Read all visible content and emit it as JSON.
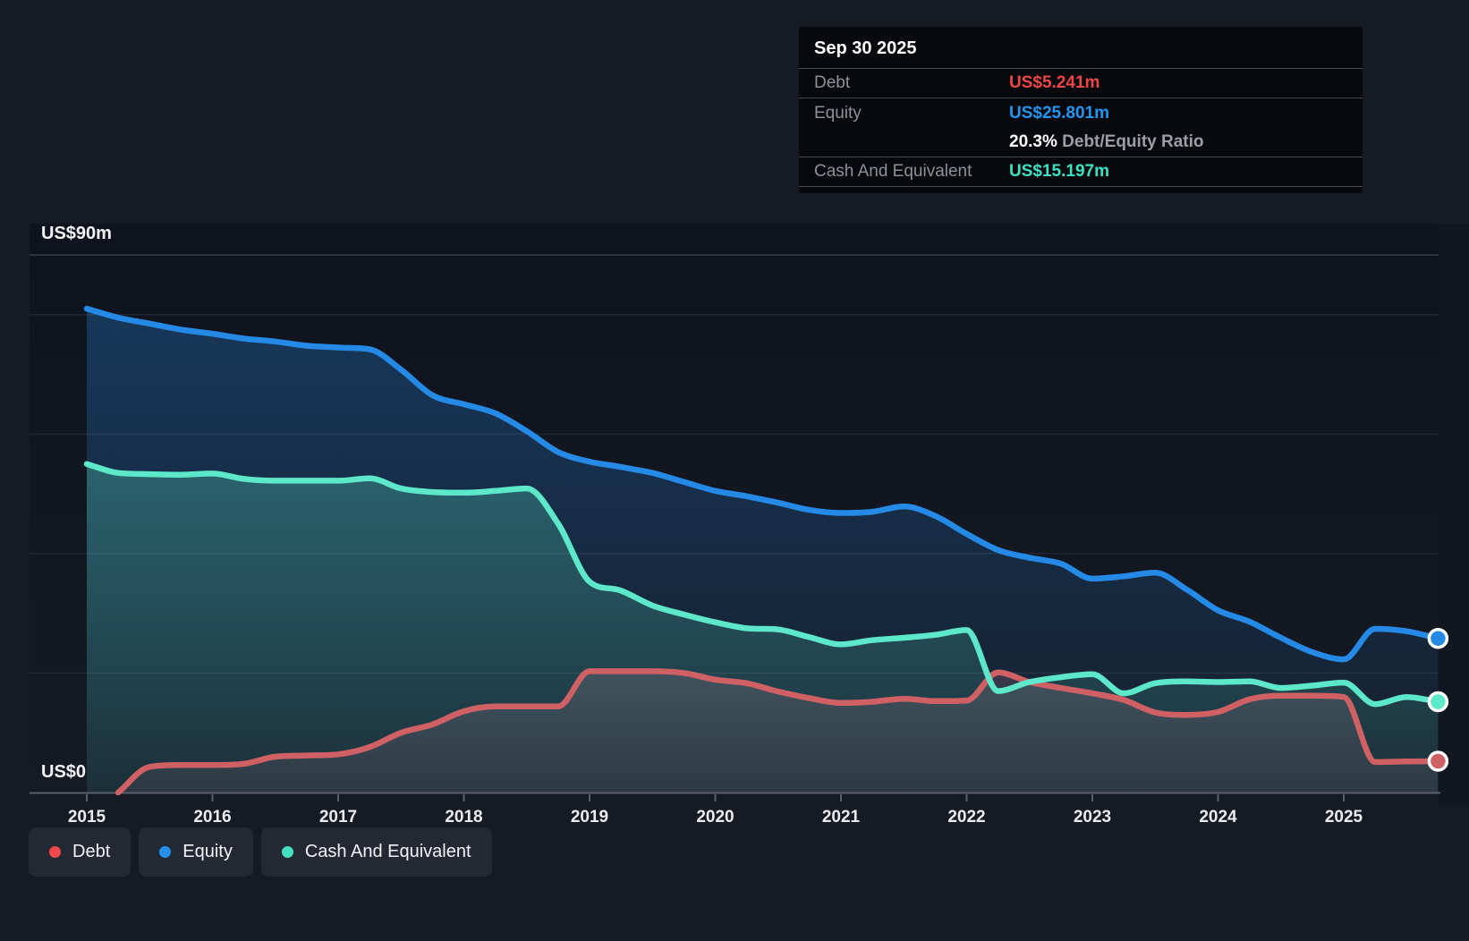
{
  "tooltip": {
    "date": "Sep 30 2025",
    "rows": [
      {
        "label": "Debt",
        "value": "US$5.241m",
        "color": "#ef4545"
      },
      {
        "label": "Equity",
        "value": "US$25.801m",
        "color": "#2196f3"
      },
      {
        "label": "Cash And Equivalent",
        "value": "US$15.197m",
        "color": "#3ce2c1"
      }
    ],
    "ratio": {
      "value": "20.3%",
      "label": "Debt/Equity Ratio"
    }
  },
  "legend": {
    "items": [
      {
        "label": "Debt",
        "color": "#ef4a4a"
      },
      {
        "label": "Equity",
        "color": "#2492ec"
      },
      {
        "label": "Cash And Equivalent",
        "color": "#45e0bf"
      }
    ]
  },
  "chart_data": {
    "type": "area",
    "y_top_label": "US$90m",
    "y_zero_label": "US$0",
    "y_unit": "US$m",
    "ylim": [
      0,
      90
    ],
    "y_gridline_values": [
      20,
      40,
      60,
      80
    ],
    "y_top_gridline": 90,
    "grid": true,
    "legend_position": "bottom-left",
    "x_tick_labels": [
      "2015",
      "2016",
      "2017",
      "2018",
      "2019",
      "2020",
      "2021",
      "2022",
      "2023",
      "2024",
      "2025"
    ],
    "x_ticks": [
      2015,
      2016,
      2017,
      2018,
      2019,
      2020,
      2021,
      2022,
      2023,
      2024,
      2025
    ],
    "x_end": "Sep 30 2025",
    "x": [
      2015.0,
      2015.25,
      2015.5,
      2015.75,
      2016.0,
      2016.25,
      2016.5,
      2016.75,
      2017.0,
      2017.25,
      2017.5,
      2017.75,
      2018.0,
      2018.25,
      2018.5,
      2018.75,
      2019.0,
      2019.25,
      2019.5,
      2019.75,
      2020.0,
      2020.25,
      2020.5,
      2020.75,
      2021.0,
      2021.25,
      2021.5,
      2021.75,
      2022.0,
      2022.25,
      2022.5,
      2022.75,
      2023.0,
      2023.25,
      2023.5,
      2023.75,
      2024.0,
      2024.25,
      2024.5,
      2024.75,
      2025.0,
      2025.25,
      2025.5,
      2025.75
    ],
    "series": [
      {
        "name": "Debt",
        "color": "#cf6165",
        "values": [
          null,
          0,
          4.3,
          4.6,
          4.6,
          4.8,
          6.0,
          6.2,
          6.4,
          7.6,
          10.0,
          11.4,
          13.6,
          14.4,
          14.4,
          14.4,
          20.3,
          20.3,
          20.3,
          20.0,
          18.9,
          18.3,
          16.9,
          15.8,
          15.0,
          15.2,
          15.7,
          15.3,
          15.4,
          20.1,
          18.5,
          17.5,
          16.6,
          15.5,
          13.4,
          13.0,
          13.5,
          15.6,
          16.2,
          16.2,
          16.0,
          5.1,
          5.2,
          5.241
        ]
      },
      {
        "name": "Equity",
        "color": "#2589e6",
        "values": [
          81.0,
          79.5,
          78.5,
          77.5,
          76.8,
          76.0,
          75.5,
          74.8,
          74.5,
          74.2,
          70.8,
          66.5,
          65.0,
          63.5,
          60.5,
          57.0,
          55.4,
          54.5,
          53.5,
          52.0,
          50.5,
          49.6,
          48.5,
          47.3,
          46.8,
          47.0,
          47.9,
          46.3,
          43.3,
          40.6,
          39.3,
          38.3,
          35.8,
          36.2,
          36.8,
          34.0,
          30.5,
          28.6,
          25.9,
          23.5,
          22.3,
          27.4,
          27.0,
          25.801
        ]
      },
      {
        "name": "Cash And Equivalent",
        "color": "#5ce8c9",
        "values": [
          55.0,
          53.5,
          53.3,
          53.2,
          53.4,
          52.5,
          52.2,
          52.2,
          52.2,
          52.6,
          50.9,
          50.3,
          50.2,
          50.5,
          50.9,
          45.0,
          35.3,
          33.8,
          31.3,
          29.8,
          28.5,
          27.5,
          27.3,
          26.0,
          24.8,
          25.5,
          25.9,
          26.4,
          27.2,
          17.0,
          18.5,
          19.3,
          19.8,
          16.6,
          18.3,
          18.6,
          18.5,
          18.6,
          17.5,
          17.9,
          18.4,
          14.8,
          16.0,
          15.197
        ]
      }
    ],
    "end_values": {
      "Debt": "US$5.241m",
      "Equity": "US$25.801m",
      "Cash And Equivalent": "US$15.197m"
    }
  }
}
